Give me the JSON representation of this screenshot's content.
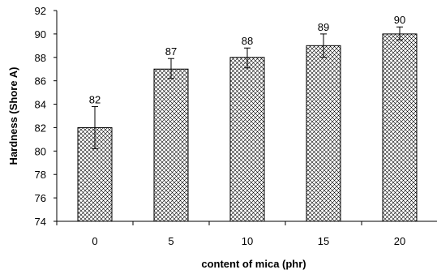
{
  "chart_data": {
    "type": "bar",
    "title": "",
    "xlabel": "content of mica (phr)",
    "ylabel": "Hardness (Shore A)",
    "categories": [
      "0",
      "5",
      "10",
      "15",
      "20"
    ],
    "values": [
      82,
      87,
      88,
      89,
      90
    ],
    "data_labels": [
      "82",
      "87",
      "88",
      "89",
      "90"
    ],
    "error_bars": [
      {
        "low": 80.2,
        "high": 83.8
      },
      {
        "low": 86.2,
        "high": 87.9
      },
      {
        "low": 87.1,
        "high": 88.8
      },
      {
        "low": 88.0,
        "high": 90.0
      },
      {
        "low": 89.5,
        "high": 90.6
      }
    ],
    "ylim": [
      74,
      92
    ],
    "yticks": [
      74,
      76,
      78,
      80,
      82,
      84,
      86,
      88,
      90,
      92
    ],
    "grid": false,
    "legend": "none",
    "bar_pattern": "crosshatch",
    "colors": {
      "bar_fill": "#ffffff",
      "hatch": "#000000",
      "axis": "#000000"
    }
  }
}
